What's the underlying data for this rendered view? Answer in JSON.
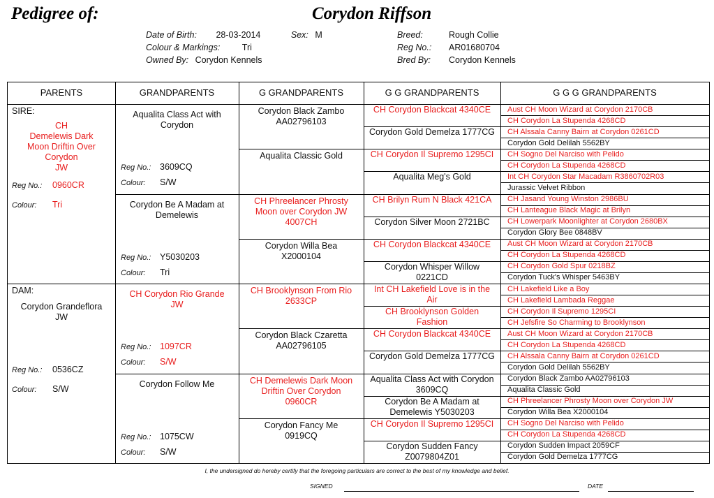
{
  "header": {
    "title_label": "Pedigree of:",
    "dog_name": "Corydon Riffson",
    "dob_label": "Date of Birth:",
    "dob": "28-03-2014",
    "sex_label": "Sex:",
    "sex": "M",
    "colour_label": "Colour & Markings:",
    "colour": "Tri",
    "owned_label": "Owned By:",
    "owned": "Corydon Kennels",
    "breed_label": "Breed:",
    "breed": "Rough Collie",
    "reg_label": "Reg No.:",
    "reg": "AR01680704",
    "bred_label": "Bred By:",
    "bred": "Corydon Kennels"
  },
  "columns": [
    "PARENTS",
    "GRANDPARENTS",
    "G GRANDPARENTS",
    "G G GRANDPARENTS",
    "G G G GRANDPARENTS"
  ],
  "labels": {
    "reg": "Reg No.:",
    "colour": "Colour:"
  },
  "parents": {
    "sire_label": "SIRE:",
    "sire_name": "CH\nDemelewis Dark\nMoon Driftin Over\nCorydon\nJW",
    "sire_reg": "0960CR",
    "sire_colour": "Tri",
    "dam_label": "DAM:",
    "dam_name": "Corydon Grandeflora\nJW",
    "dam_reg": "0536CZ",
    "dam_colour": "S/W"
  },
  "grandparents": [
    {
      "name": "Aqualita Class Act with\nCorydon",
      "reg": "3609CQ",
      "colour": "S/W"
    },
    {
      "name": "Corydon Be A Madam at\nDemelewis",
      "reg": "Y5030203",
      "colour": "Tri"
    },
    {
      "name": "CH Corydon Rio Grande\nJW",
      "reg": "1097CR",
      "colour": "S/W"
    },
    {
      "name": "Corydon Follow Me",
      "reg": "1075CW",
      "colour": "S/W"
    }
  ],
  "g_grandparents": [
    "Corydon Black Zambo\nAA02796103",
    "Aqualita Classic Gold",
    "CH Phreelancer Phrosty\nMoon over Corydon JW\n4007CH",
    "Corydon Willa Bea\nX2000104",
    "CH Brooklynson From Rio\n2633CP",
    "Corydon Black Czaretta\nAA02796105",
    "CH Demelewis Dark Moon\nDriftin Over Corydon\n0960CR",
    "Corydon Fancy Me\n0919CQ"
  ],
  "gg_grandparents": [
    "CH Corydon Blackcat 4340CE",
    "Corydon Gold Demelza 1777CG",
    "CH Corydon Il Supremo 1295CI",
    "Aqualita Meg's Gold",
    "CH Brilyn Rum N Black 421CA",
    "Corydon Silver Moon 2721BC",
    "CH Corydon Blackcat 4340CE",
    "Corydon Whisper Willow\n0221CD",
    "Int CH Lakefield Love is in the\nAir",
    "CH Brooklynson Golden\nFashion",
    "CH Corydon Blackcat 4340CE",
    "Corydon Gold Demelza 1777CG",
    "Aqualita Class Act with Corydon\n3609CQ",
    "Corydon Be A Madam at\nDemelewis Y5030203",
    "CH Corydon Il Supremo 1295CI",
    "Corydon Sudden Fancy\nZ0079804Z01"
  ],
  "ggg_grandparents": [
    "Aust CH Moon Wizard at Corydon 2170CB",
    "CH Corydon La Stupenda 4268CD",
    "CH Alssala Canny Bairn at Corydon 0261CD",
    "Corydon Gold Delilah 5562BY",
    "CH Sogno Del Narciso with Pelido",
    "CH Corydon La Stupenda 4268CD",
    "Int CH Corydon Star Macadam R3860702R03",
    "Jurassic Velvet Ribbon",
    "CH Jasand Young Winston 2986BU",
    "CH Lanteague Black Magic at Brilyn",
    "CH Lowerpark Moonlighter at Corydon 2680BX",
    "Corydon Glory Bee 0848BV",
    "Aust CH Moon Wizard at Corydon 2170CB",
    "CH Corydon La Stupenda 4268CD",
    "CH Corydon Gold Spur 0218BZ",
    "Corydon Tuck's Whisper 5463BY",
    "CH Lakefield Like a Boy",
    "CH Lakefield Lambada Reggae",
    "CH Corydon Il Supremo 1295CI",
    "CH Jefsfire So Charming to Brooklynson",
    "Aust CH Moon Wizard at Corydon 2170CB",
    "CH Corydon La Stupenda 4268CD",
    "CH Alssala Canny Bairn at Corydon 0261CD",
    "Corydon Gold Delilah 5562BY",
    "Corydon Black Zambo AA02796103",
    "Aqualita Classic Gold",
    "CH Phreelancer Phrosty Moon over Corydon JW",
    "Corydon Willa Bea X2000104",
    "CH Sogno Del Narciso with Pelido",
    "CH Corydon La Stupenda 4268CD",
    "Corydon Sudden Impact 2059CF",
    "Corydon Gold Demelza 1777CG"
  ],
  "footer": {
    "certification": "I, the undersigned do hereby certify that the foregoing particulars are correct to the best of my knowledge and belief.",
    "signed_label": "SIGNED",
    "date_label": "DATE"
  },
  "colors": {
    "champion_red": "#e81c1c",
    "text": "#111111",
    "line": "#000000"
  }
}
